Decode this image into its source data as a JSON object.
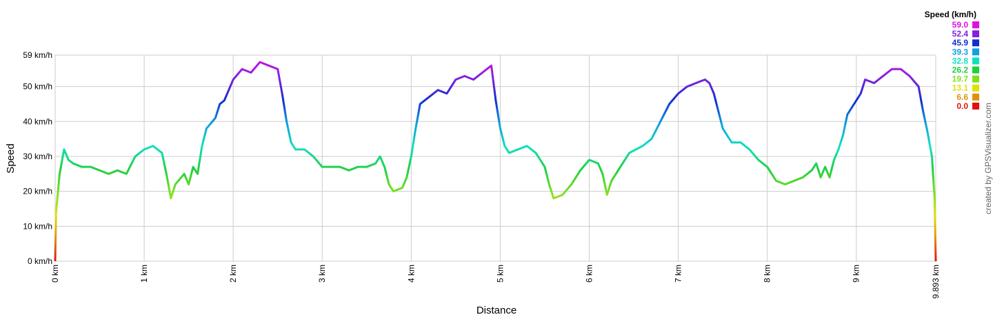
{
  "chart_data": {
    "type": "line",
    "x_label": "Distance",
    "y_label": "Speed",
    "credit": "created by GPSVisualizer.com",
    "x": [
      0,
      0.01,
      0.05,
      0.1,
      0.15,
      0.2,
      0.3,
      0.4,
      0.5,
      0.6,
      0.7,
      0.8,
      0.9,
      1.0,
      1.1,
      1.2,
      1.25,
      1.3,
      1.35,
      1.45,
      1.5,
      1.55,
      1.6,
      1.65,
      1.7,
      1.8,
      1.85,
      1.9,
      2.0,
      2.1,
      2.2,
      2.3,
      2.4,
      2.5,
      2.55,
      2.6,
      2.65,
      2.7,
      2.8,
      2.9,
      3.0,
      3.1,
      3.2,
      3.3,
      3.4,
      3.5,
      3.6,
      3.65,
      3.7,
      3.75,
      3.8,
      3.9,
      3.95,
      4.0,
      4.05,
      4.1,
      4.2,
      4.3,
      4.4,
      4.5,
      4.6,
      4.7,
      4.8,
      4.9,
      4.95,
      5.0,
      5.05,
      5.1,
      5.2,
      5.3,
      5.4,
      5.5,
      5.55,
      5.6,
      5.7,
      5.8,
      5.9,
      6.0,
      6.1,
      6.15,
      6.2,
      6.25,
      6.35,
      6.45,
      6.6,
      6.7,
      6.8,
      6.9,
      7.0,
      7.1,
      7.2,
      7.3,
      7.35,
      7.4,
      7.5,
      7.6,
      7.7,
      7.8,
      7.9,
      8.0,
      8.1,
      8.2,
      8.3,
      8.4,
      8.5,
      8.55,
      8.6,
      8.65,
      8.7,
      8.75,
      8.8,
      8.85,
      8.9,
      9.0,
      9.05,
      9.1,
      9.2,
      9.3,
      9.4,
      9.5,
      9.6,
      9.7,
      9.75,
      9.8,
      9.85,
      9.88,
      9.893
    ],
    "values": [
      0,
      14,
      25,
      32,
      29,
      28,
      27,
      27,
      26,
      25,
      26,
      25,
      30,
      32,
      33,
      31,
      25,
      18,
      22,
      25,
      22,
      27,
      25,
      33,
      38,
      41,
      45,
      46,
      52,
      55,
      54,
      57,
      56,
      55,
      48,
      40,
      34,
      32,
      32,
      30,
      27,
      27,
      27,
      26,
      27,
      27,
      28,
      30,
      27,
      22,
      20,
      21,
      24,
      30,
      38,
      45,
      47,
      49,
      48,
      52,
      53,
      52,
      54,
      56,
      46,
      38,
      33,
      31,
      32,
      33,
      31,
      27,
      22,
      18,
      19,
      22,
      26,
      29,
      28,
      25,
      19,
      23,
      27,
      31,
      33,
      35,
      40,
      45,
      48,
      50,
      51,
      52,
      51,
      48,
      38,
      34,
      34,
      32,
      29,
      27,
      23,
      22,
      23,
      24,
      26,
      28,
      24,
      27,
      24,
      29,
      32,
      36,
      42,
      46,
      48,
      52,
      51,
      53,
      55,
      55,
      53,
      50,
      43,
      37,
      30,
      18,
      0
    ],
    "xlim": [
      0,
      9.893
    ],
    "ylim": [
      0,
      59
    ],
    "xticks": [
      {
        "value": 0,
        "label": "0 km"
      },
      {
        "value": 1,
        "label": "1 km"
      },
      {
        "value": 2,
        "label": "2 km"
      },
      {
        "value": 3,
        "label": "3 km"
      },
      {
        "value": 4,
        "label": "4 km"
      },
      {
        "value": 5,
        "label": "5 km"
      },
      {
        "value": 6,
        "label": "6 km"
      },
      {
        "value": 7,
        "label": "7 km"
      },
      {
        "value": 8,
        "label": "8 km"
      },
      {
        "value": 9,
        "label": "9 km"
      },
      {
        "value": 9.893,
        "label": "9.893 km"
      }
    ],
    "yticks": [
      {
        "value": 0,
        "label": "0 km/h"
      },
      {
        "value": 10,
        "label": "10 km/h"
      },
      {
        "value": 20,
        "label": "20 km/h"
      },
      {
        "value": 30,
        "label": "30 km/h"
      },
      {
        "value": 40,
        "label": "40 km/h"
      },
      {
        "value": 50,
        "label": "50 km/h"
      },
      {
        "value": 59,
        "label": "59 km/h"
      }
    ],
    "grid": true,
    "legend": {
      "title": "Speed (km/h)",
      "stops": [
        {
          "value": 59,
          "label": "59.0",
          "color": "#e010e0"
        },
        {
          "value": 52.4,
          "label": "52.4",
          "color": "#8020e0"
        },
        {
          "value": 45.9,
          "label": "45.9",
          "color": "#1030d0"
        },
        {
          "value": 39.3,
          "label": "39.3",
          "color": "#10a0e0"
        },
        {
          "value": 32.8,
          "label": "32.8",
          "color": "#10e0c0"
        },
        {
          "value": 26.2,
          "label": "26.2",
          "color": "#20d040"
        },
        {
          "value": 19.7,
          "label": "19.7",
          "color": "#80e020"
        },
        {
          "value": 13.1,
          "label": "13.1",
          "color": "#e0e010"
        },
        {
          "value": 6.6,
          "label": "6.6",
          "color": "#e09010"
        },
        {
          "value": 0,
          "label": "0.0",
          "color": "#e01010"
        }
      ]
    }
  }
}
